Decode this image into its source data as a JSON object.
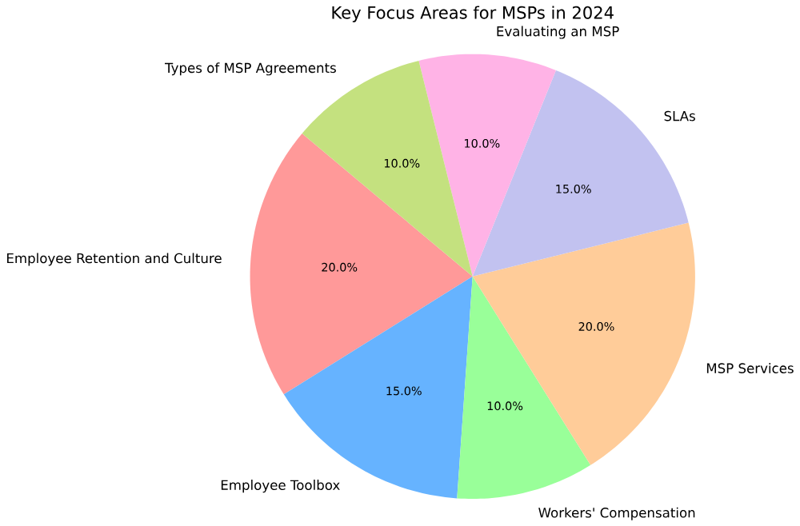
{
  "chart_data": {
    "type": "pie",
    "title": "Key Focus Areas for MSPs in 2024",
    "categories": [
      "Employee Retention and Culture",
      "Employee Toolbox",
      "Workers' Compensation",
      "MSP Services",
      "SLAs",
      "Evaluating an MSP",
      "Types of MSP Agreements"
    ],
    "values": [
      20,
      15,
      10,
      20,
      15,
      10,
      10
    ],
    "value_labels": [
      "20.0%",
      "15.0%",
      "10.0%",
      "20.0%",
      "15.0%",
      "10.0%",
      "10.0%"
    ],
    "colors": [
      "#ff9999",
      "#66b3ff",
      "#99ff99",
      "#ffcc99",
      "#c2c2f0",
      "#ffb3e6",
      "#c4e17f"
    ]
  }
}
